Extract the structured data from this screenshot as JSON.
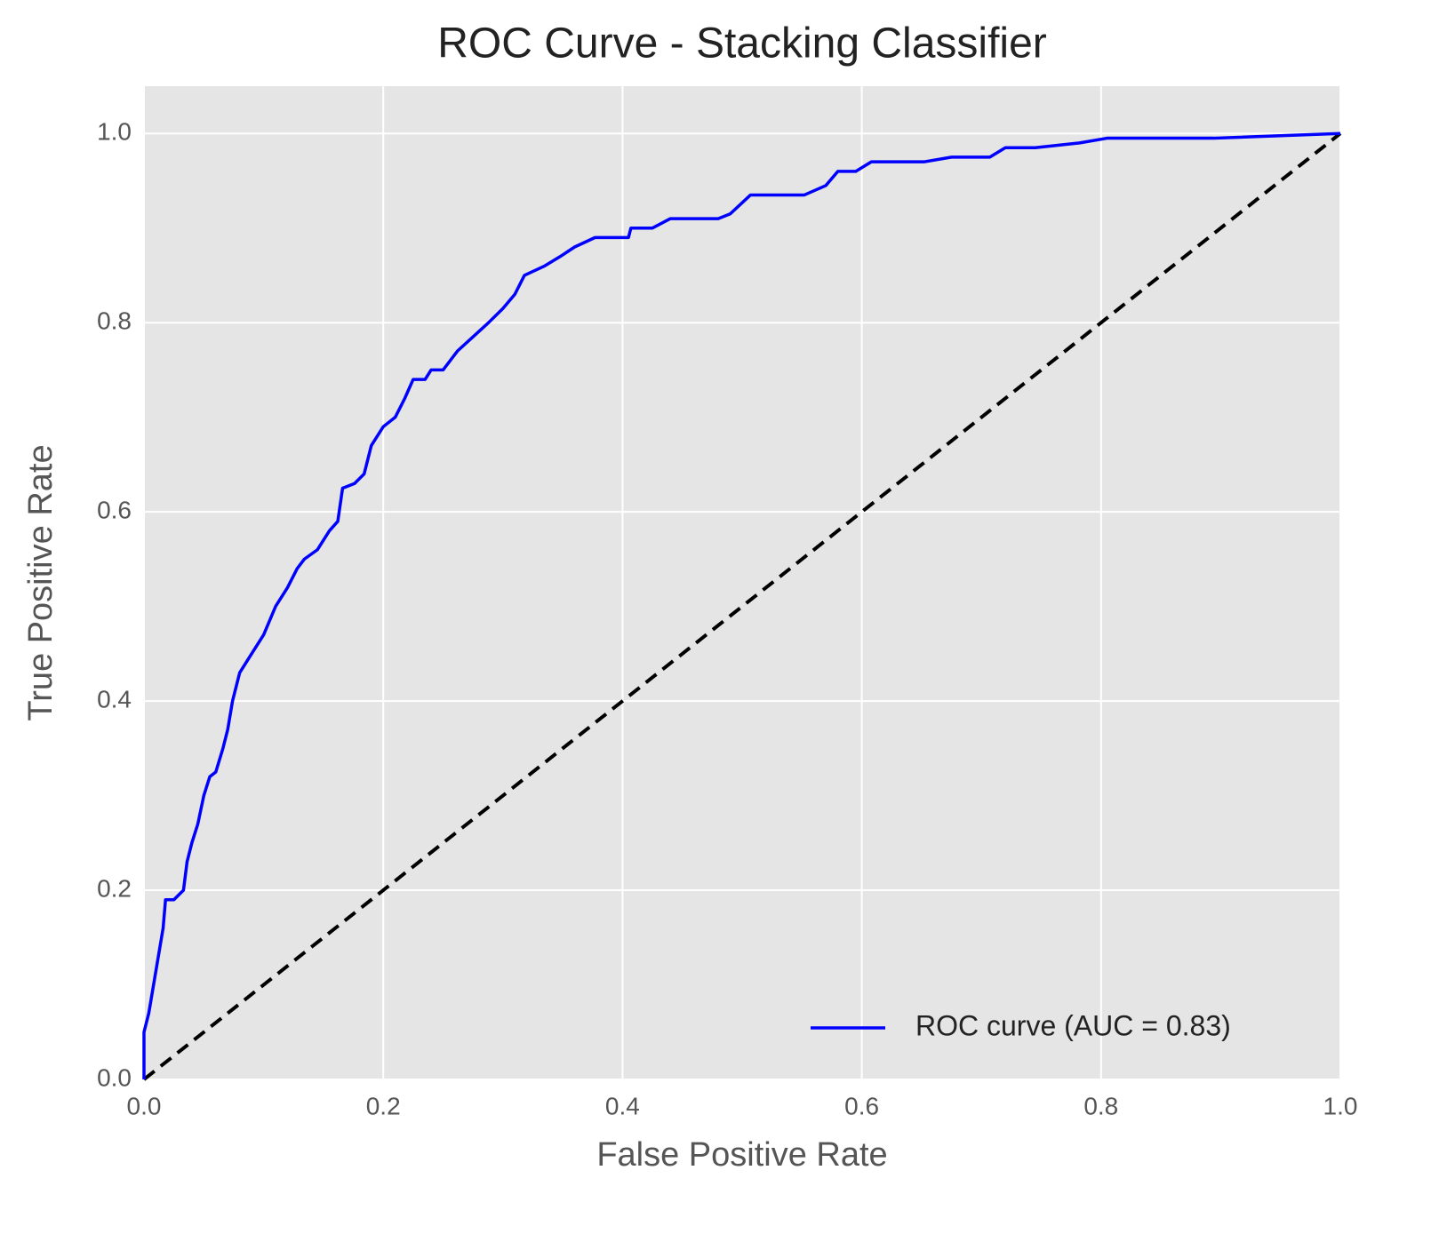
{
  "chart_data": {
    "type": "line",
    "title": "ROC Curve - Stacking Classifier",
    "xlabel": "False Positive Rate",
    "ylabel": "True Positive Rate",
    "xlim": [
      0,
      1
    ],
    "ylim": [
      0,
      1.05
    ],
    "xticks": [
      {
        "value": 0,
        "label": "0.0"
      },
      0.2,
      0.4,
      0.6,
      0.8,
      {
        "value": 1,
        "label": "1.0"
      }
    ],
    "yticks": [
      {
        "value": 0,
        "label": "0.0"
      },
      0.2,
      0.4,
      0.6,
      0.8,
      {
        "value": 1,
        "label": "1.0"
      }
    ],
    "grid": true,
    "legend": "lower right",
    "series": [
      {
        "name": "ROC curve (AUC = 0.83)",
        "color": "#0000ff",
        "x": [
          0,
          0,
          0.004,
          0.008,
          0.012,
          0.016,
          0.018,
          0.025,
          0.033,
          0.036,
          0.04,
          0.045,
          0.05,
          0.055,
          0.06,
          0.066,
          0.07,
          0.074,
          0.08,
          0.09,
          0.1,
          0.11,
          0.12,
          0.128,
          0.134,
          0.145,
          0.155,
          0.162,
          0.166,
          0.176,
          0.184,
          0.19,
          0.2,
          0.21,
          0.218,
          0.225,
          0.235,
          0.24,
          0.25,
          0.262,
          0.275,
          0.288,
          0.3,
          0.31,
          0.318,
          0.335,
          0.348,
          0.36,
          0.377,
          0.405,
          0.407,
          0.425,
          0.44,
          0.48,
          0.49,
          0.507,
          0.552,
          0.57,
          0.58,
          0.595,
          0.608,
          0.652,
          0.675,
          0.707,
          0.72,
          0.745,
          0.782,
          0.805,
          0.894,
          1
        ],
        "values": [
          0,
          0.05,
          0.07,
          0.1,
          0.13,
          0.16,
          0.19,
          0.19,
          0.2,
          0.23,
          0.25,
          0.27,
          0.3,
          0.32,
          0.325,
          0.35,
          0.37,
          0.4,
          0.43,
          0.45,
          0.47,
          0.5,
          0.52,
          0.54,
          0.55,
          0.56,
          0.58,
          0.59,
          0.625,
          0.63,
          0.64,
          0.67,
          0.69,
          0.7,
          0.72,
          0.74,
          0.74,
          0.75,
          0.75,
          0.77,
          0.785,
          0.8,
          0.815,
          0.83,
          0.85,
          0.86,
          0.87,
          0.88,
          0.89,
          0.89,
          0.9,
          0.9,
          0.91,
          0.91,
          0.915,
          0.935,
          0.935,
          0.945,
          0.96,
          0.96,
          0.97,
          0.97,
          0.975,
          0.975,
          0.985,
          0.985,
          0.99,
          0.995,
          0.995,
          1.0
        ]
      }
    ],
    "reference_line": {
      "x": [
        0,
        1
      ],
      "values": [
        0,
        1
      ],
      "color": "#000000",
      "style": "dashed"
    }
  }
}
